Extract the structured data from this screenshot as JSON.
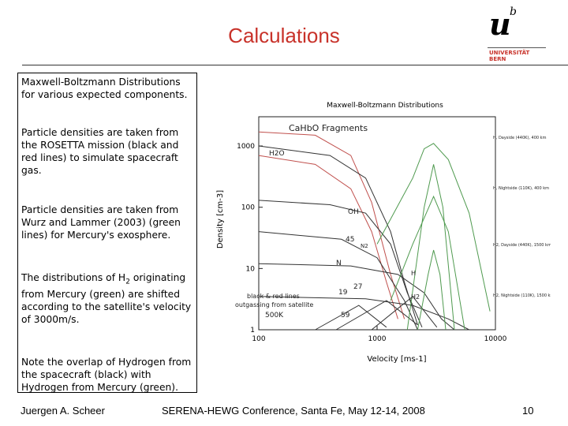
{
  "slide": {
    "title": "Calculations",
    "logo": {
      "mark": "u",
      "superscript": "b",
      "line1": "UNIVERSITÄT",
      "line2": "BERN"
    },
    "paragraphs": [
      "Maxwell-Boltzmann Distributions for various expected components.",
      "Particle densities are taken from the ROSETTA mission (black and red lines) to simulate spacecraft gas.",
      "Particle densities are taken from Wurz and Lammer (2003) (green lines) for Mercury's exosphere.",
      {
        "before": "The distributions of H",
        "sub": "2",
        "after": " originating from Mercury (green) are shifted according to the satellite's velocity of 3000m/s."
      },
      "Note the overlap of Hydrogen from the spacecraft (black) with Hydrogen from Mercury (green)."
    ],
    "footer": {
      "author": "Juergen A. Scheer",
      "conference": "SERENA-HEWG Conference, Santa Fe, May 12-14, 2008",
      "page": "10"
    }
  },
  "chart_data": {
    "type": "line",
    "title": "Maxwell-Boltzmann Distributions",
    "xlabel": "Velocity [ms-1]",
    "ylabel": "Density [cm-3]",
    "xscale": "log",
    "yscale": "log",
    "xlim": [
      100,
      10000
    ],
    "ylim": [
      1,
      3000
    ],
    "xticks": [
      "100",
      "1000",
      "10000"
    ],
    "yticks": [
      "1",
      "10",
      "100",
      "1000"
    ],
    "legend_title": "CaHbO Fragments",
    "annotations": [
      "H2O",
      "OH",
      "45",
      "N2",
      "N",
      "H",
      "H2",
      "19",
      "27",
      "59",
      "black & red lines",
      "outgassing from satellite",
      "500K"
    ],
    "right_labels": [
      "H, Dayside (440K), 400 km",
      "H, Nightside (110K), 400 km",
      "H2, Dayside (440K), 1500 km",
      "H2, Nightside (110K), 1500 km"
    ],
    "colors": {
      "black": "#333333",
      "red": "#c0504d",
      "green": "#4f9a4f"
    },
    "series": [
      {
        "color": "red",
        "points": [
          [
            100,
            1700
          ],
          [
            300,
            1500
          ],
          [
            600,
            700
          ],
          [
            900,
            120
          ],
          [
            1300,
            8
          ],
          [
            1700,
            1.5
          ]
        ]
      },
      {
        "color": "red",
        "points": [
          [
            100,
            700
          ],
          [
            300,
            500
          ],
          [
            600,
            200
          ],
          [
            900,
            40
          ],
          [
            1200,
            6
          ],
          [
            1500,
            1.5
          ]
        ]
      },
      {
        "color": "black",
        "points": [
          [
            100,
            1000
          ],
          [
            400,
            700
          ],
          [
            800,
            300
          ],
          [
            1300,
            40
          ],
          [
            1700,
            6
          ],
          [
            2200,
            1.2
          ]
        ]
      },
      {
        "color": "black",
        "points": [
          [
            100,
            130
          ],
          [
            400,
            110
          ],
          [
            800,
            80
          ],
          [
            1300,
            25
          ],
          [
            1800,
            4
          ],
          [
            2400,
            1.1
          ]
        ]
      },
      {
        "color": "black",
        "points": [
          [
            100,
            40
          ],
          [
            500,
            30
          ],
          [
            1000,
            15
          ],
          [
            1700,
            3
          ],
          [
            2200,
            1
          ]
        ]
      },
      {
        "color": "black",
        "points": [
          [
            100,
            12
          ],
          [
            600,
            11
          ],
          [
            1500,
            8
          ],
          [
            2500,
            4
          ],
          [
            3500,
            1.5
          ],
          [
            4500,
            1
          ]
        ]
      },
      {
        "color": "black",
        "points": [
          [
            100,
            3.5
          ],
          [
            800,
            3.2
          ],
          [
            2000,
            2.5
          ],
          [
            4000,
            1.5
          ],
          [
            6000,
            1
          ]
        ]
      },
      {
        "color": "black",
        "points": [
          [
            300,
            1
          ],
          [
            700,
            2.5
          ],
          [
            1200,
            1.1
          ]
        ]
      },
      {
        "color": "black",
        "points": [
          [
            450,
            1
          ],
          [
            1200,
            3
          ],
          [
            2200,
            1.2
          ]
        ]
      },
      {
        "color": "black",
        "points": [
          [
            900,
            1
          ],
          [
            2000,
            3.5
          ],
          [
            3200,
            1.1
          ]
        ]
      },
      {
        "color": "green",
        "points": [
          [
            1000,
            25
          ],
          [
            2000,
            300
          ],
          [
            2500,
            900
          ],
          [
            3000,
            1100
          ],
          [
            4000,
            600
          ],
          [
            6000,
            80
          ],
          [
            9000,
            2
          ]
        ]
      },
      {
        "color": "green",
        "points": [
          [
            1800,
            1
          ],
          [
            2500,
            100
          ],
          [
            3000,
            500
          ],
          [
            3600,
            100
          ],
          [
            4500,
            1
          ]
        ]
      },
      {
        "color": "green",
        "points": [
          [
            1300,
            3
          ],
          [
            2000,
            25
          ],
          [
            3000,
            150
          ],
          [
            4000,
            40
          ],
          [
            5500,
            1
          ]
        ]
      },
      {
        "color": "green",
        "points": [
          [
            2200,
            1
          ],
          [
            2700,
            8
          ],
          [
            3000,
            20
          ],
          [
            3400,
            8
          ],
          [
            3800,
            1
          ]
        ]
      }
    ]
  }
}
